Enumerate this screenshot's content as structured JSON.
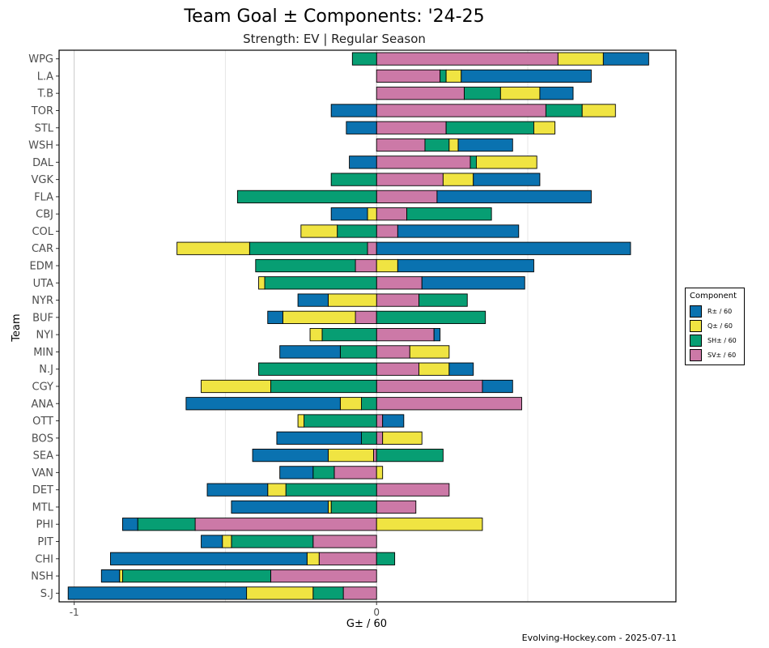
{
  "title": "Team Goal ± Components: '24-25",
  "subtitle": "Strength: EV  |  Regular Season",
  "caption": "Evolving-Hockey.com - 2025-07-11",
  "colors": {
    "R": "#0a72b0",
    "Q": "#f0e442",
    "SH": "#079e73",
    "SV": "#cc79a7"
  },
  "legend": {
    "title": "Component",
    "items": [
      {
        "key": "R",
        "label": "R± / 60"
      },
      {
        "key": "Q",
        "label": "Q± / 60"
      },
      {
        "key": "SH",
        "label": "SH± / 60"
      },
      {
        "key": "SV",
        "label": "SV± / 60"
      }
    ]
  },
  "chart_data": {
    "type": "bar",
    "orientation": "horizontal",
    "stacked": "diverging",
    "xlabel": "G± / 60",
    "ylabel": "Team",
    "xlim": [
      -1.05,
      0.99
    ],
    "xticks": [
      -1,
      0
    ],
    "grid": true,
    "legend_position": "right",
    "categories": [
      "WPG",
      "L.A",
      "T.B",
      "TOR",
      "STL",
      "WSH",
      "DAL",
      "VGK",
      "FLA",
      "CBJ",
      "COL",
      "CAR",
      "EDM",
      "UTA",
      "NYR",
      "BUF",
      "NYI",
      "MIN",
      "N.J",
      "CGY",
      "ANA",
      "OTT",
      "BOS",
      "SEA",
      "VAN",
      "DET",
      "MTL",
      "PHI",
      "PIT",
      "CHI",
      "NSH",
      "S.J"
    ],
    "series": [
      {
        "name": "SV± / 60",
        "key": "SV",
        "values": [
          0.6,
          0.21,
          0.29,
          0.56,
          0.23,
          0.16,
          0.31,
          0.22,
          0.2,
          0.1,
          0.07,
          -0.03,
          -0.07,
          0.15,
          0.14,
          -0.07,
          0.19,
          0.11,
          0.14,
          0.35,
          0.48,
          0.02,
          0.02,
          -0.01,
          -0.14,
          0.24,
          0.13,
          -0.6,
          -0.21,
          -0.19,
          -0.35,
          -0.11
        ]
      },
      {
        "name": "SH± / 60",
        "key": "SH",
        "values": [
          -0.08,
          0.02,
          0.12,
          0.12,
          0.29,
          0.08,
          0.02,
          -0.15,
          -0.46,
          0.28,
          -0.13,
          -0.39,
          -0.33,
          -0.37,
          0.16,
          0.36,
          -0.18,
          -0.12,
          -0.39,
          -0.35,
          -0.05,
          -0.24,
          -0.05,
          0.22,
          -0.07,
          -0.3,
          -0.15,
          -0.19,
          -0.27,
          0.06,
          -0.49,
          -0.1
        ]
      },
      {
        "name": "Q± / 60",
        "key": "Q",
        "values": [
          0.15,
          0.05,
          0.13,
          0.11,
          0.07,
          0.03,
          0.2,
          0.1,
          0,
          -0.03,
          -0.12,
          -0.24,
          0.07,
          -0.02,
          -0.16,
          -0.24,
          -0.04,
          0.13,
          0.1,
          -0.23,
          -0.07,
          -0.02,
          0.13,
          -0.15,
          0.02,
          -0.06,
          -0.01,
          0.35,
          -0.03,
          -0.04,
          -0.01,
          -0.22
        ]
      },
      {
        "name": "R± / 60",
        "key": "R",
        "values": [
          0.15,
          0.43,
          0.11,
          -0.15,
          -0.1,
          0.18,
          -0.09,
          0.22,
          0.51,
          -0.12,
          0.4,
          0.84,
          0.45,
          0.34,
          -0.1,
          -0.05,
          0.02,
          -0.2,
          0.08,
          0.1,
          -0.51,
          0.07,
          -0.28,
          -0.25,
          -0.11,
          -0.2,
          -0.32,
          -0.05,
          -0.07,
          -0.65,
          -0.06,
          -0.59
        ]
      }
    ]
  }
}
